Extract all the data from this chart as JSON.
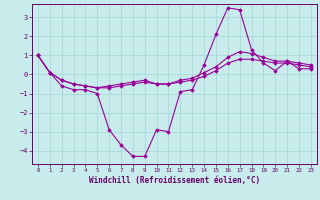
{
  "background_color": "#c8ecec",
  "grid_color": "#a8d8d8",
  "line_color": "#990099",
  "marker_color": "#990099",
  "xlabel": "Windchill (Refroidissement éolien,°C)",
  "xlabel_color": "#660066",
  "tick_color": "#660066",
  "xlim": [
    -0.5,
    23.5
  ],
  "ylim": [
    -4.7,
    3.7
  ],
  "yticks": [
    -4,
    -3,
    -2,
    -1,
    0,
    1,
    2,
    3
  ],
  "xticks": [
    0,
    1,
    2,
    3,
    4,
    5,
    6,
    7,
    8,
    9,
    10,
    11,
    12,
    13,
    14,
    15,
    16,
    17,
    18,
    19,
    20,
    21,
    22,
    23
  ],
  "series": [
    [
      1.0,
      0.1,
      -0.6,
      -0.8,
      -0.8,
      -1.0,
      -2.9,
      -3.7,
      -4.3,
      -4.3,
      -2.9,
      -3.0,
      -0.9,
      -0.8,
      0.5,
      2.1,
      3.5,
      3.4,
      1.3,
      0.6,
      0.2,
      0.7,
      0.3,
      0.3
    ],
    [
      1.0,
      0.1,
      -0.3,
      -0.5,
      -0.6,
      -0.7,
      -0.6,
      -0.5,
      -0.4,
      -0.3,
      -0.5,
      -0.5,
      -0.4,
      -0.3,
      -0.1,
      0.2,
      0.6,
      0.8,
      0.8,
      0.7,
      0.6,
      0.6,
      0.5,
      0.4
    ],
    [
      1.0,
      0.1,
      -0.3,
      -0.5,
      -0.6,
      -0.7,
      -0.7,
      -0.6,
      -0.5,
      -0.4,
      -0.5,
      -0.5,
      -0.3,
      -0.2,
      0.1,
      0.4,
      0.9,
      1.2,
      1.1,
      0.9,
      0.7,
      0.7,
      0.6,
      0.5
    ]
  ]
}
